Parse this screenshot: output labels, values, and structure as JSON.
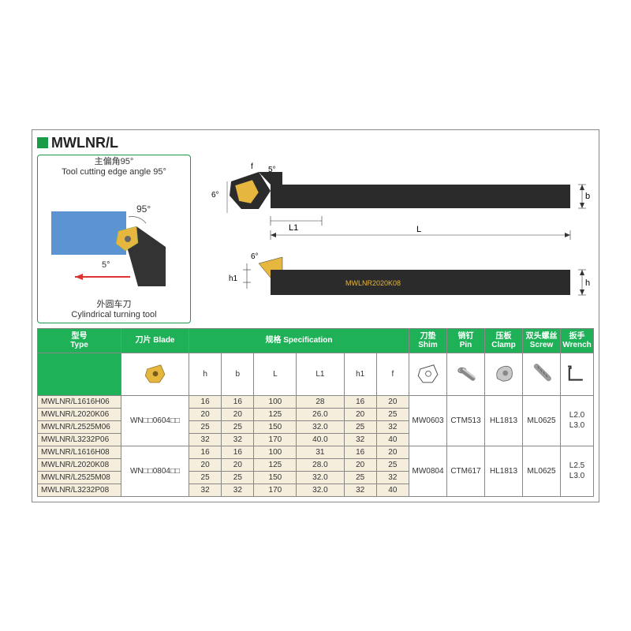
{
  "title": "MWLNR/L",
  "toolbox": {
    "angle_cn": "主偏角95°",
    "angle_en": "Tool cutting edge angle 95°",
    "angle_main": "95°",
    "angle_small": "5°",
    "bottom_cn": "外圆车刀",
    "bottom_en": "Cylindrical turning tool"
  },
  "tech_draw": {
    "angle_top": "5°",
    "angle_side": "6°",
    "angle_bottom": "6°",
    "dim_L": "L",
    "dim_L1": "L1",
    "dim_b": "b",
    "dim_f": "f",
    "dim_h": "h",
    "dim_h1": "h1",
    "part_label": "MWLNR2020K08"
  },
  "headers": {
    "type_cn": "型号",
    "type_en": "Type",
    "blade_cn": "刀片",
    "blade_en": "Blade",
    "spec_cn": "规格",
    "spec_en": "Specification",
    "shim_cn": "刀垫",
    "shim_en": "Shim",
    "pin_cn": "销钉",
    "pin_en": "Pin",
    "clamp_cn": "压板",
    "clamp_en": "Clamp",
    "screw_cn": "双头螺丝",
    "screw_en": "Screw",
    "wrench_cn": "扳手",
    "wrench_en": "Wrench"
  },
  "spec_cols": [
    "h",
    "b",
    "L",
    "L1",
    "h1",
    "f"
  ],
  "blade_codes": [
    "WN□□0604□□",
    "WN□□0804□□"
  ],
  "rows": [
    {
      "type": "MWLNR/L1616H06",
      "h": "16",
      "b": "16",
      "L": "100",
      "L1": "28",
      "h1": "16",
      "f": "20"
    },
    {
      "type": "MWLNR/L2020K06",
      "h": "20",
      "b": "20",
      "L": "125",
      "L1": "26.0",
      "h1": "20",
      "f": "25"
    },
    {
      "type": "MWLNR/L2525M06",
      "h": "25",
      "b": "25",
      "L": "150",
      "L1": "32.0",
      "h1": "25",
      "f": "32"
    },
    {
      "type": "MWLNR/L3232P06",
      "h": "32",
      "b": "32",
      "L": "170",
      "L1": "40.0",
      "h1": "32",
      "f": "40"
    },
    {
      "type": "MWLNR/L1616H08",
      "h": "16",
      "b": "16",
      "L": "100",
      "L1": "31",
      "h1": "16",
      "f": "20"
    },
    {
      "type": "MWLNR/L2020K08",
      "h": "20",
      "b": "20",
      "L": "125",
      "L1": "28.0",
      "h1": "20",
      "f": "25"
    },
    {
      "type": "MWLNR/L2525M08",
      "h": "25",
      "b": "25",
      "L": "150",
      "L1": "32.0",
      "h1": "25",
      "f": "32"
    },
    {
      "type": "MWLNR/L3232P08",
      "h": "32",
      "b": "32",
      "L": "170",
      "L1": "32.0",
      "h1": "32",
      "f": "40"
    }
  ],
  "accessories": {
    "group1": {
      "shim": "MW0603",
      "pin": "CTM513",
      "clamp": "HL1813",
      "screw": "ML0625",
      "wrench": "L2.0<br>L3.0"
    },
    "group2": {
      "shim": "MW0804",
      "pin": "CTM617",
      "clamp": "HL1813",
      "screw": "ML0625",
      "wrench": "L2.5<br>L3.0"
    }
  },
  "colors": {
    "accent": "#1a9b47",
    "header_bg": "#1fb157",
    "cell_bg": "#f5eedd",
    "tool_body": "#2b2b2b",
    "insert": "#e6b73f",
    "blue": "#5b94d1"
  }
}
